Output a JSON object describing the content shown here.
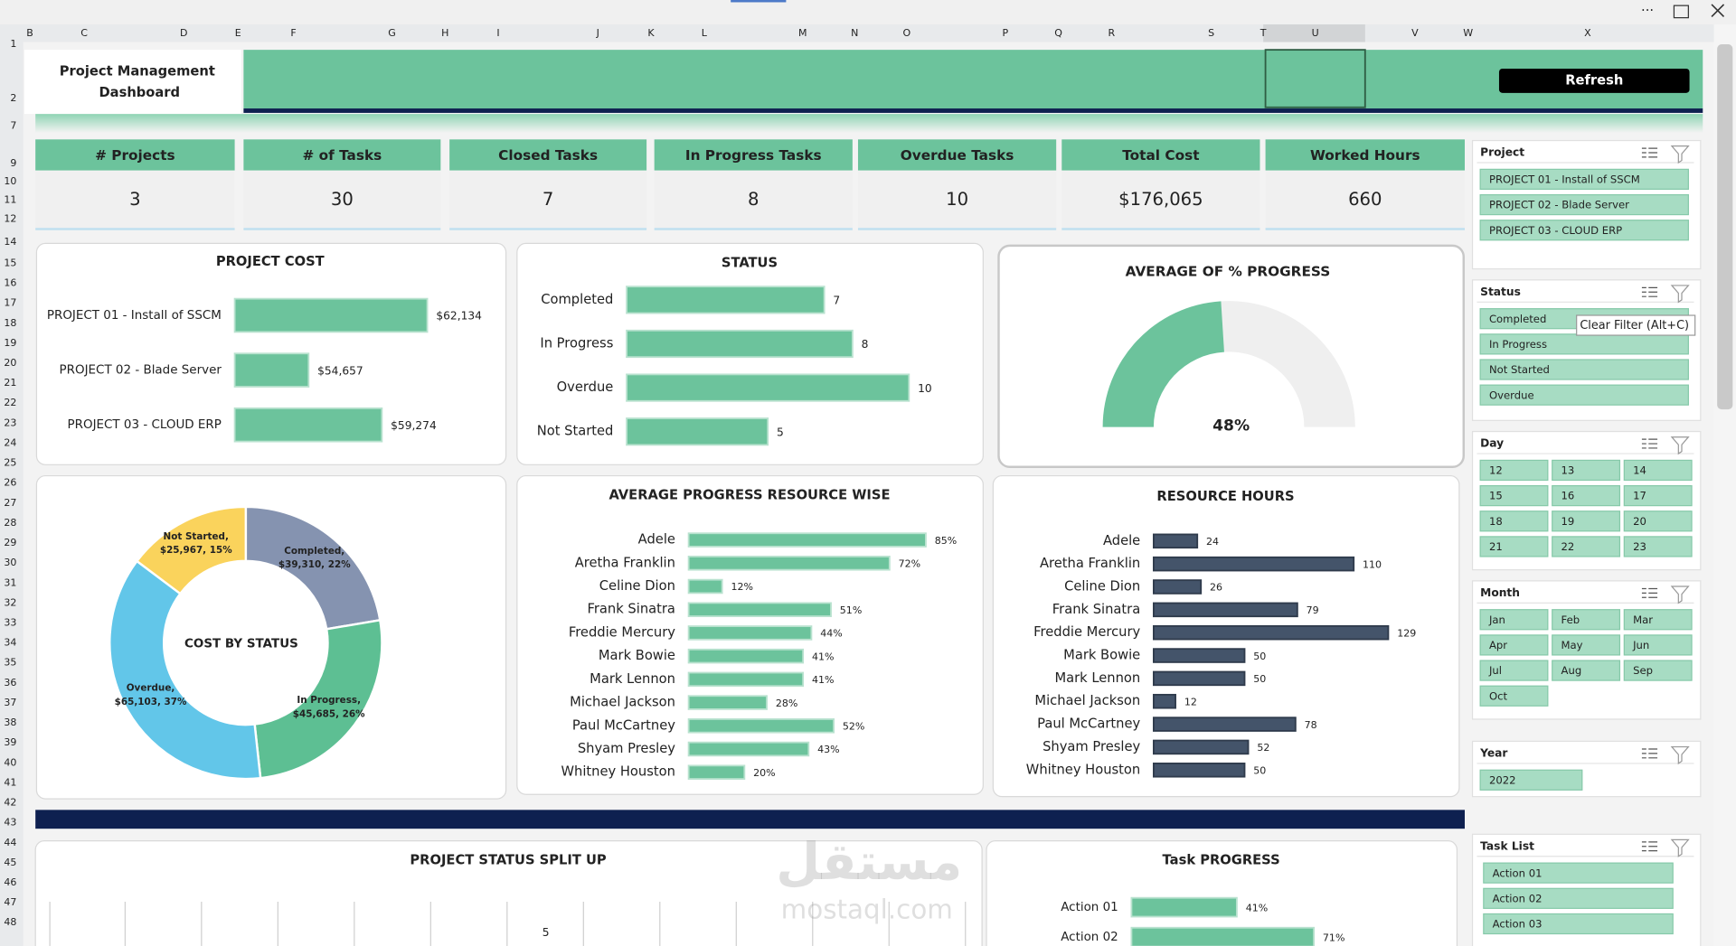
{
  "sheet": {
    "columns": [
      "B",
      "C",
      "D",
      "E",
      "F",
      "G",
      "H",
      "I",
      "J",
      "K",
      "L",
      "M",
      "N",
      "O",
      "P",
      "Q",
      "R",
      "S",
      "T",
      "U",
      "V",
      "W",
      "X"
    ],
    "rows": [
      1,
      2,
      7,
      9,
      10,
      11,
      12,
      14,
      15,
      16,
      17,
      18,
      19,
      20,
      21,
      22,
      23,
      24,
      25,
      26,
      27,
      28,
      29,
      30,
      31,
      32,
      33,
      34,
      35,
      36,
      37,
      38,
      39,
      40,
      41,
      42,
      43,
      44,
      45,
      46,
      47,
      48
    ]
  },
  "header": {
    "title_lines": [
      "Project Management",
      "Dashboard"
    ],
    "button": "Refresh"
  },
  "kpis": [
    {
      "label": "# Projects",
      "value": 3
    },
    {
      "label": "# of Tasks",
      "value": 30
    },
    {
      "label": "Closed Tasks",
      "value": 7
    },
    {
      "label": "In Progress Tasks",
      "value": 8
    },
    {
      "label": "Overdue Tasks",
      "value": 10
    },
    {
      "label": "Total Cost",
      "value": "$176,065"
    },
    {
      "label": "Worked Hours",
      "value": 660
    }
  ],
  "charts": {
    "project_cost": {
      "type": "bar",
      "orientation": "horizontal",
      "title": "PROJECT COST",
      "categories": [
        "PROJECT 01 - Install of SSCM",
        "PROJECT 02 - Blade Server",
        "PROJECT 03 - CLOUD ERP"
      ],
      "values": [
        62134,
        54657,
        59274
      ],
      "value_labels": [
        "$62,134",
        "$54,657",
        "$59,274"
      ],
      "color": "#6cc39c",
      "xlim": [
        50000,
        65000
      ]
    },
    "status": {
      "type": "bar",
      "orientation": "horizontal",
      "title": "STATUS",
      "categories": [
        "Completed",
        "In Progress",
        "Overdue",
        "Not Started"
      ],
      "values": [
        7,
        8,
        10,
        5
      ],
      "color": "#6cc39c",
      "xlim": [
        0,
        12
      ]
    },
    "progress_gauge": {
      "type": "gauge",
      "title": "AVERAGE OF % PROGRESS",
      "value": 48,
      "value_label": "48%",
      "ylim": [
        0,
        100
      ],
      "color": "#6cc39c",
      "track_color": "#efefef"
    },
    "cost_by_status": {
      "type": "donut",
      "title": "COST BY STATUS",
      "categories": [
        "Completed",
        "In Progress",
        "Overdue",
        "Not Started"
      ],
      "values": [
        39310,
        45685,
        65103,
        25967
      ],
      "data_labels": [
        [
          "Completed,",
          "$39,310, 22%"
        ],
        [
          "In Progress,",
          "$45,685, 26%"
        ],
        [
          "Overdue,",
          "$65,103, 37%"
        ],
        [
          "Not Started,",
          "$25,967, 15%"
        ]
      ],
      "colors": [
        "#8593b0",
        "#5dbf93",
        "#62c6e9",
        "#fad35c"
      ]
    },
    "resource_progress": {
      "type": "bar",
      "orientation": "horizontal",
      "title": "AVERAGE PROGRESS RESOURCE WISE",
      "categories": [
        "Adele",
        "Aretha Franklin",
        "Celine Dion",
        "Frank Sinatra",
        "Freddie Mercury",
        "Mark Bowie",
        "Mark Lennon",
        "Michael Jackson",
        "Paul McCartney",
        "Shyam Presley",
        "Whitney Houston"
      ],
      "values": [
        85,
        72,
        12,
        51,
        44,
        41,
        41,
        28,
        52,
        43,
        20
      ],
      "value_labels": [
        "85%",
        "72%",
        "12%",
        "51%",
        "44%",
        "41%",
        "41%",
        "28%",
        "52%",
        "43%",
        "20%"
      ],
      "color": "#6cc39c",
      "xlim": [
        0,
        100
      ]
    },
    "resource_hours": {
      "type": "bar",
      "orientation": "horizontal",
      "title": "RESOURCE HOURS",
      "categories": [
        "Adele",
        "Aretha Franklin",
        "Celine Dion",
        "Frank Sinatra",
        "Freddie Mercury",
        "Mark Bowie",
        "Mark Lennon",
        "Michael Jackson",
        "Paul McCartney",
        "Shyam Presley",
        "Whitney Houston"
      ],
      "values": [
        24,
        110,
        26,
        79,
        129,
        50,
        50,
        12,
        78,
        52,
        50
      ],
      "color": "#44546a",
      "xlim": [
        0,
        140
      ]
    },
    "project_status_split": {
      "type": "column",
      "title": "PROJECT STATUS SPLIT UP",
      "visible_labels": [
        5
      ]
    },
    "task_progress": {
      "type": "bar",
      "orientation": "horizontal",
      "title": "Task PROGRESS",
      "categories": [
        "Action 01",
        "Action 02"
      ],
      "values": [
        41,
        71
      ],
      "value_labels": [
        "41%",
        "71%"
      ],
      "color": "#6cc39c",
      "xlim": [
        0,
        100
      ]
    }
  },
  "slicers": [
    {
      "title": "Project",
      "columns": 1,
      "items": [
        "PROJECT 01 - Install of SSCM",
        "PROJECT 02 - Blade Server",
        "PROJECT 03 - CLOUD ERP"
      ]
    },
    {
      "title": "Status",
      "columns": 1,
      "items": [
        "Completed",
        "In Progress",
        "Not Started",
        "Overdue"
      ]
    },
    {
      "title": "Day",
      "columns": 3,
      "items": [
        "12",
        "13",
        "14",
        "15",
        "16",
        "17",
        "18",
        "19",
        "20",
        "21",
        "22",
        "23"
      ]
    },
    {
      "title": "Month",
      "columns": 3,
      "items": [
        "Jan",
        "Feb",
        "Mar",
        "Apr",
        "May",
        "Jun",
        "Jul",
        "Aug",
        "Sep",
        "Oct"
      ]
    },
    {
      "title": "Year",
      "columns": 2,
      "items": [
        "2022"
      ]
    },
    {
      "title": "Task List",
      "columns": 1,
      "items": [
        "Action 01",
        "Action 02",
        "Action 03"
      ]
    }
  ],
  "tooltip": "Clear Filter (Alt+C)",
  "watermark": [
    "مستقل",
    "mostaql.com"
  ]
}
